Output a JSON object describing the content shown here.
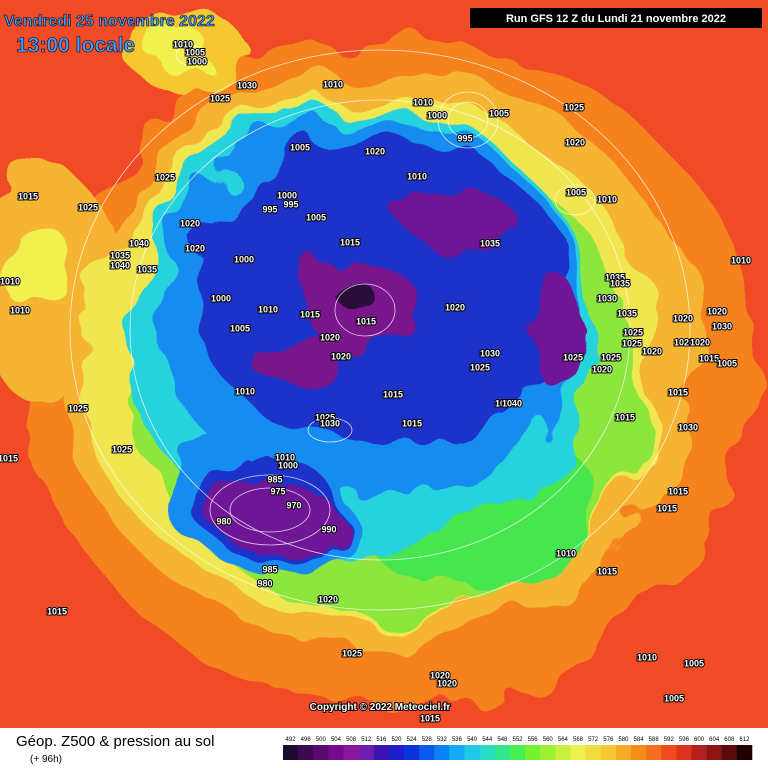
{
  "header": {
    "date": "Vendredi 25 novembre 2022",
    "time": "13:00 locale",
    "run": "Run GFS 12 Z du Lundi 21 novembre 2022"
  },
  "copyright": "Copyright © 2022 Meteociel.fr",
  "footer": {
    "title": "Géop. Z500 & pression au sol",
    "lead": "(+ 96h)"
  },
  "isobar_labels": [
    1010,
    1005,
    1000,
    1025,
    1030,
    1010,
    1010,
    1000,
    995,
    1005,
    1025,
    1020,
    1005,
    1020,
    1025,
    1010,
    1000,
    995,
    995,
    1005,
    1005,
    1010,
    1015,
    1025,
    1020,
    1035,
    1020,
    1040,
    1015,
    1000,
    1035,
    1040,
    1035,
    1010,
    1010,
    1035,
    1035,
    1030,
    1000,
    1010,
    1010,
    1015,
    1020,
    1015,
    1035,
    1020,
    1020,
    1030,
    1005,
    1020,
    1025,
    1025,
    1020,
    1030,
    1025,
    1025,
    1020,
    1020,
    1020,
    1015,
    1005,
    1025,
    1020,
    1010,
    1015,
    1015,
    1010,
    1040,
    1025,
    1015,
    1025,
    1030,
    1015,
    1030,
    1025,
    1015,
    1010,
    1000,
    985,
    975,
    970,
    980,
    990,
    1015,
    1015,
    985,
    980,
    1010,
    1015,
    1015,
    1020,
    1025,
    1010,
    1005,
    1020,
    1020,
    1005,
    1015
  ],
  "colorbar": {
    "ticks": [
      492,
      496,
      500,
      504,
      508,
      512,
      516,
      520,
      524,
      528,
      532,
      536,
      540,
      544,
      548,
      552,
      556,
      560,
      564,
      568,
      572,
      576,
      580,
      584,
      588,
      592,
      596,
      600,
      604,
      608,
      612
    ],
    "colors": [
      "#1e0a2e",
      "#3c0a50",
      "#5a0a6e",
      "#780a8c",
      "#8c14a0",
      "#6e1eaa",
      "#3c14b4",
      "#1e1ec8",
      "#0a32dc",
      "#0a5af0",
      "#0a82f5",
      "#14aaf5",
      "#1ec8e6",
      "#28dcc8",
      "#32e68c",
      "#46f050",
      "#78f032",
      "#a0f032",
      "#c8f03c",
      "#f0f050",
      "#f0dc3c",
      "#f5c832",
      "#f5aa28",
      "#f58c1e",
      "#f56e1e",
      "#f04b1e",
      "#dc321e",
      "#b41e1e",
      "#8c1414",
      "#5a0a0a",
      "#1e0000"
    ]
  }
}
